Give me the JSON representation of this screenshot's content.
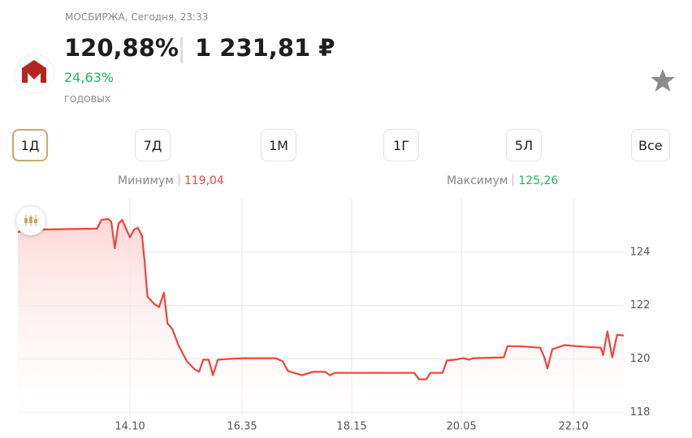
{
  "header": {
    "source": "МОСБИРЖА, Сегодня, 23:33",
    "yield": "120,88%",
    "price": "1 231,81 ₽",
    "change": "24,63%",
    "change_note": "ГОДОВЫХ"
  },
  "periods": [
    "1Д",
    "7Д",
    "1М",
    "1Г",
    "5Л",
    "Все"
  ],
  "range": {
    "min_label": "Минимум",
    "min_value": "119,04",
    "max_label": "Максимум",
    "max_value": "125,26"
  },
  "chart_data": {
    "type": "line",
    "color": "#f0443a",
    "grid": true,
    "x": [
      0,
      4.4,
      13.1,
      13.8,
      14.9,
      15.4,
      16.0,
      16.6,
      17.2,
      17.8,
      18.5,
      19.2,
      19.8,
      20.5,
      20.9,
      21.4,
      22.5,
      23.3,
      24.1,
      24.7,
      25.5,
      26.5,
      27.9,
      29.2,
      29.9,
      30.6,
      31.5,
      32.2,
      33.0,
      34.6,
      37.3,
      42.6,
      43.7,
      44.6,
      46.9,
      48.7,
      50.7,
      51.5,
      52.3,
      57.4,
      65.4,
      66.2,
      67.4,
      68.1,
      70.1,
      70.8,
      72.1,
      73.5,
      74.5,
      75.1,
      80.2,
      80.8,
      82.8,
      86.2,
      86.9,
      87.4,
      88.2,
      90.2,
      92.2,
      96.2,
      96.6,
      97.3,
      98.1,
      98.9,
      100
    ],
    "values": [
      124.76,
      124.85,
      124.88,
      125.21,
      125.24,
      125.15,
      124.15,
      125.06,
      125.21,
      124.91,
      124.55,
      124.85,
      124.91,
      124.61,
      123.7,
      122.33,
      122.06,
      121.94,
      122.48,
      121.33,
      121.12,
      120.52,
      119.91,
      119.61,
      119.52,
      119.97,
      119.97,
      119.39,
      119.97,
      120.0,
      120.03,
      120.03,
      119.91,
      119.55,
      119.39,
      119.52,
      119.52,
      119.39,
      119.48,
      119.48,
      119.48,
      119.24,
      119.24,
      119.48,
      119.48,
      119.94,
      119.97,
      120.03,
      119.97,
      120.03,
      120.06,
      120.48,
      120.48,
      120.42,
      120.06,
      119.64,
      120.36,
      120.52,
      120.48,
      120.42,
      120.15,
      121.03,
      120.06,
      120.91,
      120.88
    ],
    "xlim": [
      0,
      100
    ],
    "ylim": [
      117.8,
      126
    ],
    "xticks": [
      {
        "value": 18.5,
        "label": "14.10"
      },
      {
        "value": 37.0,
        "label": "16.35"
      },
      {
        "value": 55.1,
        "label": "18.15"
      },
      {
        "value": 73.2,
        "label": "20.05"
      },
      {
        "value": 91.7,
        "label": "22.10"
      }
    ],
    "yticks": [
      118,
      120,
      122,
      124
    ]
  }
}
